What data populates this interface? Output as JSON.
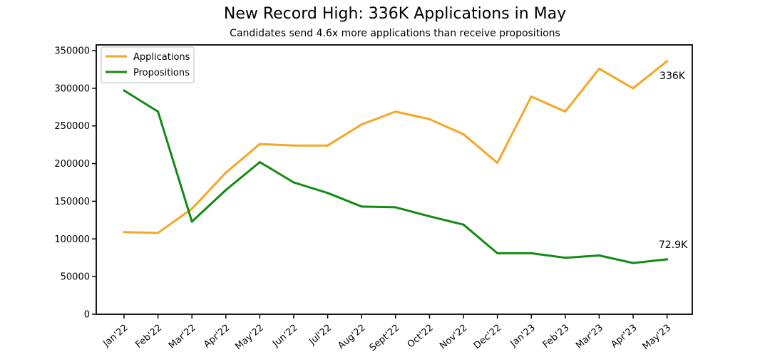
{
  "chart_data": {
    "type": "line",
    "title": "New Record High: 336K Applications in May",
    "subtitle": "Candidates send 4.6x more applications than receive propositions",
    "xlabel": "",
    "ylabel": "",
    "categories": [
      "Jan'22",
      "Feb'22",
      "Mar'22",
      "Apr'22",
      "May'22",
      "Jun'22",
      "Jul'22",
      "Aug'22",
      "Sept'22",
      "Oct'22",
      "Nov'22",
      "Dec'22",
      "Jan'23",
      "Feb'23",
      "Mar'23",
      "Apr'23",
      "May'23"
    ],
    "ylim": [
      0,
      350000
    ],
    "yticks": [
      "0",
      "50000",
      "100000",
      "150000",
      "200000",
      "250000",
      "300000",
      "350000"
    ],
    "grid": false,
    "legend_position": "top-left",
    "series": [
      {
        "name": "Applications",
        "color": "#f5a623",
        "values": [
          109000,
          108000,
          140000,
          188000,
          226000,
          224000,
          224000,
          252000,
          269000,
          259000,
          239000,
          201000,
          289000,
          269000,
          326000,
          300000,
          336000
        ]
      },
      {
        "name": "Propositions",
        "color": "#138a13",
        "values": [
          297000,
          269000,
          123000,
          165000,
          202000,
          175000,
          161000,
          143000,
          142000,
          130000,
          119000,
          81000,
          81000,
          75000,
          78000,
          68000,
          72900
        ]
      }
    ],
    "annotations": [
      {
        "text": "336K",
        "series": 0,
        "index": 16
      },
      {
        "text": "72.9K",
        "series": 1,
        "index": 16
      }
    ]
  }
}
